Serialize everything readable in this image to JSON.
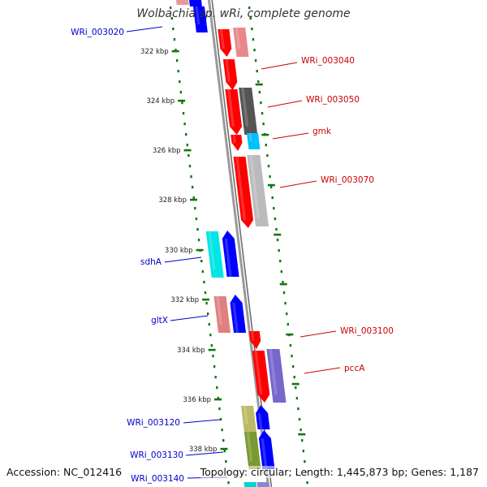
{
  "title": "Wolbachia sp. wRi, complete genome",
  "footer": {
    "accession": "Accession: NC_012416",
    "topology": "Topology: circular; Length: 1,445,873 bp; Genes: 1,187"
  },
  "ticks": [
    "322 kbp",
    "324 kbp",
    "326 kbp",
    "328 kbp",
    "330 kbp",
    "332 kbp",
    "334 kbp",
    "336 kbp",
    "338 kbp"
  ],
  "gene_labels": [
    {
      "text": "WRi_003020",
      "strand": "minus",
      "color": "#0000cc"
    },
    {
      "text": "WRi_003040",
      "strand": "plus",
      "color": "#cc0000"
    },
    {
      "text": "WRi_003050",
      "strand": "plus",
      "color": "#cc0000"
    },
    {
      "text": "gmk",
      "strand": "plus",
      "color": "#cc0000"
    },
    {
      "text": "WRi_003070",
      "strand": "plus",
      "color": "#cc0000"
    },
    {
      "text": "sdhA",
      "strand": "minus",
      "color": "#0000cc"
    },
    {
      "text": "gltX",
      "strand": "minus",
      "color": "#0000cc"
    },
    {
      "text": "WRi_003100",
      "strand": "plus",
      "color": "#cc0000"
    },
    {
      "text": "pccA",
      "strand": "plus",
      "color": "#cc0000"
    },
    {
      "text": "WRi_003120",
      "strand": "minus",
      "color": "#0000cc"
    },
    {
      "text": "WRi_003130",
      "strand": "minus",
      "color": "#0000cc"
    },
    {
      "text": "WRi_003140",
      "strand": "minus",
      "color": "#0000cc"
    }
  ],
  "colors": {
    "backbone": "#8c8c8c",
    "tick": "#117711",
    "plus_strand": "#ff0000",
    "minus_strand": "#0000ff",
    "label_plus": "#cc0000",
    "label_minus": "#0000cc"
  }
}
